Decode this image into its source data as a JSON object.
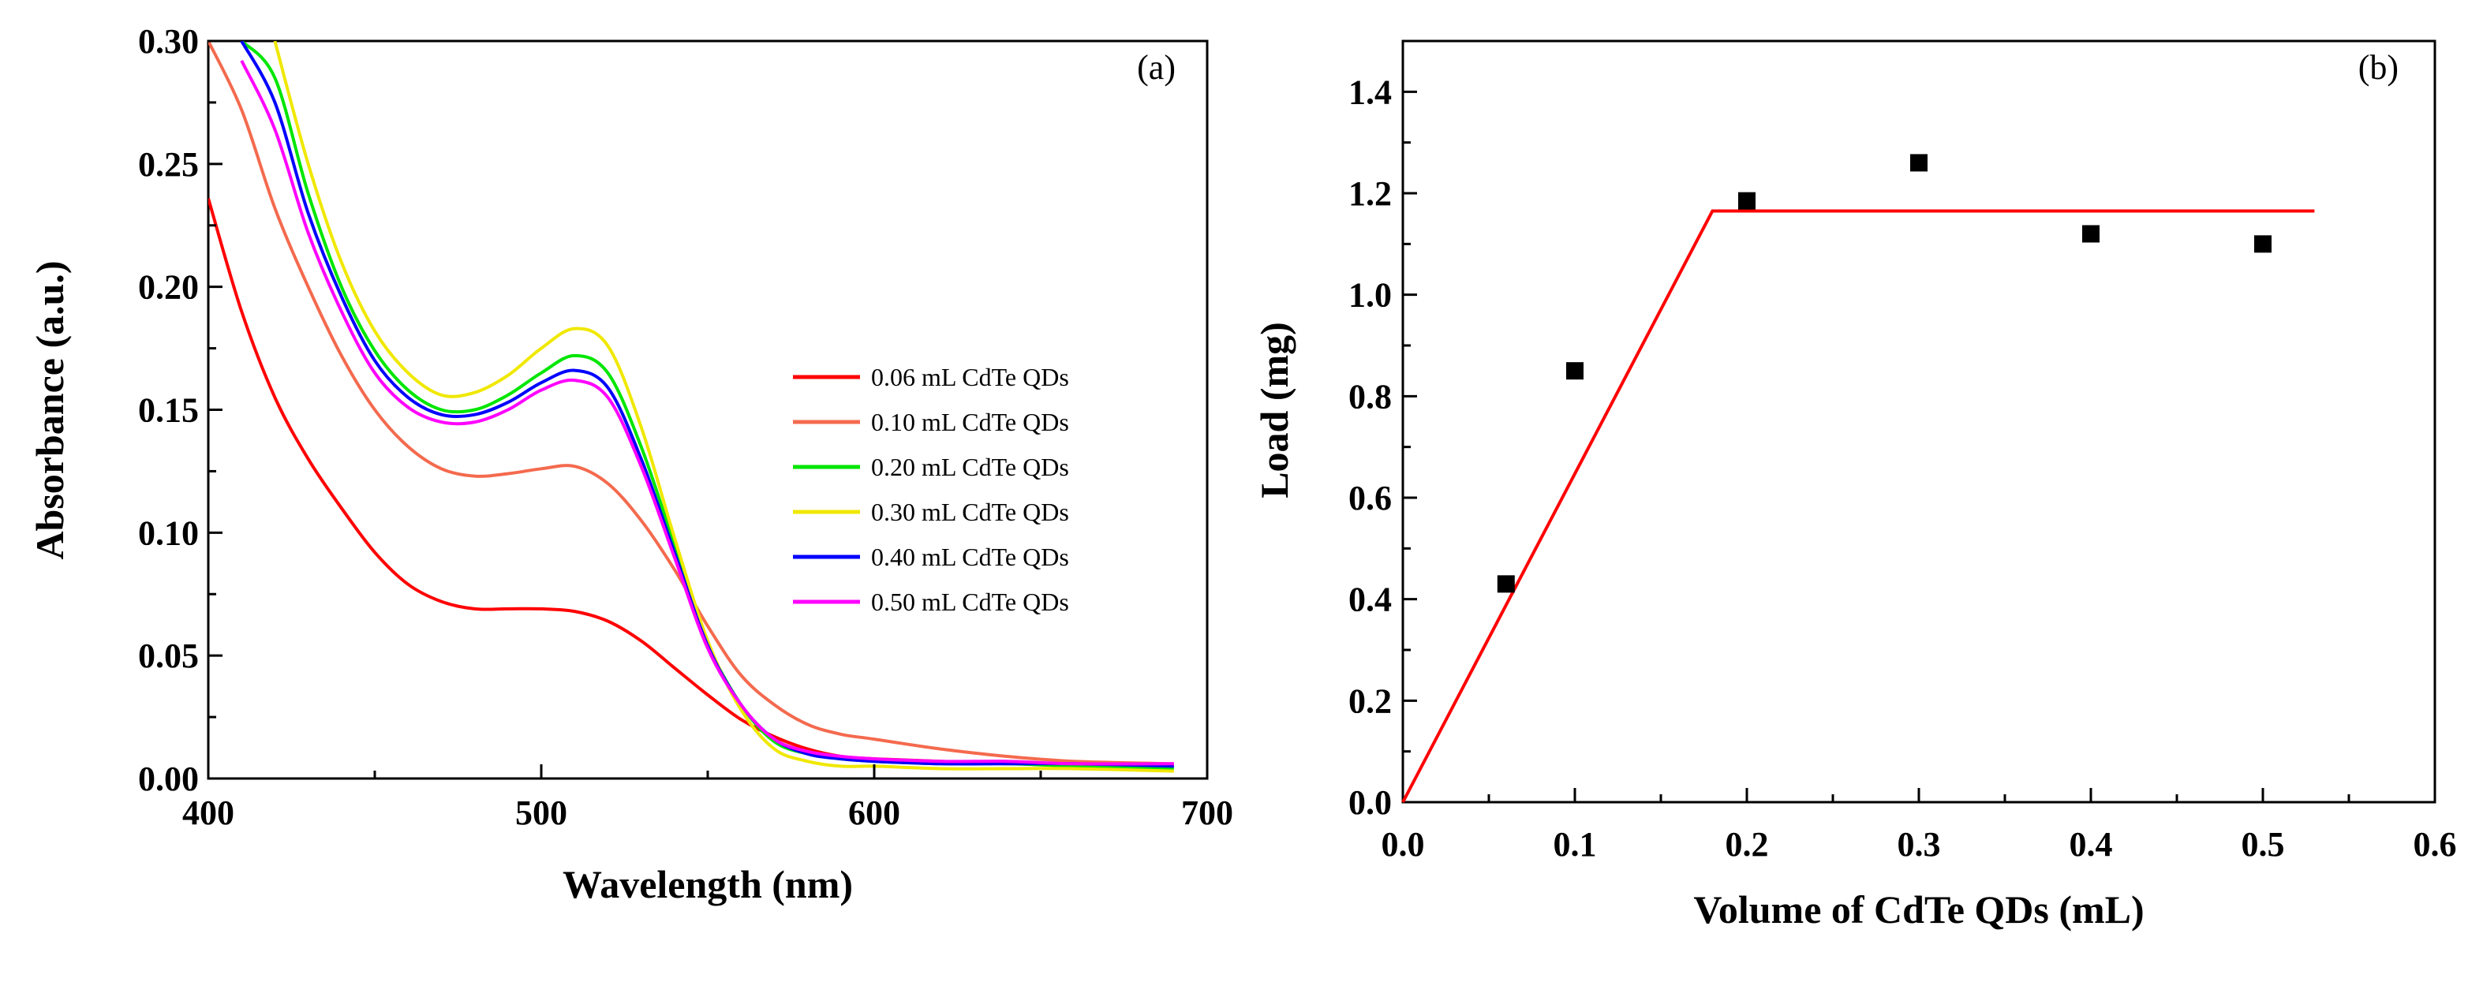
{
  "chart_data": [
    {
      "type": "line",
      "panel_label": "(a)",
      "xlabel": "Wavelength (nm)",
      "ylabel": "Absorbance (a.u.)",
      "xlim": [
        400,
        700
      ],
      "ylim": [
        0,
        0.3
      ],
      "xticks": [
        "400",
        "500",
        "600",
        "700"
      ],
      "yticks": [
        "0.00",
        "0.05",
        "0.10",
        "0.15",
        "0.20",
        "0.25",
        "0.30"
      ],
      "legend_position": "right-middle",
      "x": [
        400,
        410,
        420,
        430,
        440,
        450,
        460,
        470,
        480,
        490,
        500,
        510,
        520,
        530,
        540,
        550,
        560,
        570,
        580,
        590,
        600,
        620,
        640,
        660,
        690
      ],
      "series": [
        {
          "name": "0.06 mL CdTe QDs",
          "color": "#ff0000",
          "values": [
            0.236,
            0.19,
            0.155,
            0.13,
            0.11,
            0.092,
            0.079,
            0.072,
            0.069,
            0.069,
            0.069,
            0.068,
            0.064,
            0.056,
            0.045,
            0.034,
            0.024,
            0.017,
            0.012,
            0.009,
            0.008,
            0.007,
            0.006,
            0.006,
            0.005
          ]
        },
        {
          "name": "0.10 mL CdTe QDs",
          "color": "#f46a4e",
          "values": [
            0.3,
            0.272,
            0.232,
            0.2,
            0.172,
            0.15,
            0.135,
            0.126,
            0.123,
            0.124,
            0.126,
            0.127,
            0.12,
            0.105,
            0.085,
            0.062,
            0.042,
            0.03,
            0.022,
            0.018,
            0.016,
            0.012,
            0.009,
            0.007,
            0.006
          ]
        },
        {
          "name": "0.20 mL CdTe QDs",
          "color": "#00e600",
          "values": [
            null,
            0.3,
            0.285,
            0.238,
            0.2,
            0.174,
            0.158,
            0.15,
            0.15,
            0.156,
            0.165,
            0.172,
            0.165,
            0.135,
            0.095,
            0.055,
            0.03,
            0.015,
            0.01,
            0.008,
            0.007,
            0.006,
            0.006,
            0.005,
            0.004
          ]
        },
        {
          "name": "0.30 mL CdTe QDs",
          "color": "#f0e800",
          "values": [
            null,
            null,
            0.3,
            0.25,
            0.21,
            0.182,
            0.165,
            0.156,
            0.157,
            0.164,
            0.175,
            0.183,
            0.176,
            0.143,
            0.098,
            0.056,
            0.028,
            0.012,
            0.007,
            0.005,
            0.005,
            0.004,
            0.004,
            0.004,
            0.003
          ]
        },
        {
          "name": "0.40 mL CdTe QDs",
          "color": "#0000ff",
          "values": [
            null,
            0.3,
            0.275,
            0.23,
            0.196,
            0.17,
            0.155,
            0.148,
            0.148,
            0.153,
            0.161,
            0.166,
            0.159,
            0.13,
            0.092,
            0.054,
            0.03,
            0.016,
            0.01,
            0.008,
            0.007,
            0.006,
            0.006,
            0.006,
            0.005
          ]
        },
        {
          "name": "0.50 mL CdTe QDs",
          "color": "#ff00ff",
          "values": [
            null,
            0.292,
            0.264,
            0.222,
            0.19,
            0.165,
            0.151,
            0.145,
            0.145,
            0.15,
            0.158,
            0.162,
            0.155,
            0.127,
            0.09,
            0.053,
            0.03,
            0.016,
            0.011,
            0.009,
            0.008,
            0.007,
            0.007,
            0.006,
            0.006
          ]
        }
      ]
    },
    {
      "type": "scatter",
      "panel_label": "(b)",
      "xlabel": "Volume of CdTe QDs (mL)",
      "ylabel": "Load (mg)",
      "xlim": [
        0,
        0.6
      ],
      "ylim": [
        0,
        1.5
      ],
      "xticks": [
        "0.0",
        "0.1",
        "0.2",
        "0.3",
        "0.4",
        "0.5",
        "0.6"
      ],
      "yticks": [
        "0.0",
        "0.2",
        "0.4",
        "0.6",
        "0.8",
        "1.0",
        "1.2",
        "1.4"
      ],
      "points": {
        "name": "Load",
        "color": "#000000",
        "x": [
          0.06,
          0.1,
          0.2,
          0.3,
          0.4,
          0.5
        ],
        "y": [
          0.43,
          0.85,
          1.185,
          1.26,
          1.12,
          1.1
        ]
      },
      "fit_line": {
        "name": "Fit",
        "color": "#ff0000",
        "x": [
          0.0,
          0.18,
          0.53
        ],
        "y": [
          0.0,
          1.165,
          1.165
        ]
      }
    }
  ]
}
